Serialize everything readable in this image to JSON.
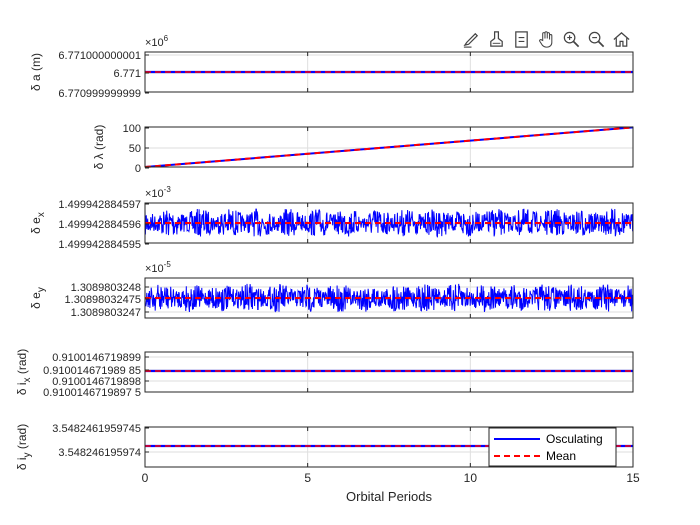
{
  "toolbar": {
    "icons": [
      "brush-edit-icon",
      "data-cursor-icon",
      "legend-icon",
      "pan-hand-icon",
      "zoom-in-icon",
      "zoom-out-icon",
      "home-icon"
    ]
  },
  "colors": {
    "oscillating": "#0000ff",
    "mean": "#ff0000",
    "axis": "#262626",
    "grid": "#dedede"
  },
  "chart_data": {
    "type": "line",
    "xlabel": "Orbital Periods",
    "xlim": [
      0,
      15
    ],
    "xticks": [
      "0",
      "5",
      "10",
      "15"
    ],
    "grid": true,
    "legend": {
      "entries": [
        "Osculating",
        "Mean"
      ],
      "placement": "bottom-right"
    },
    "subplots": [
      {
        "id": "da",
        "ylabel_main": "δ a (m)",
        "ylabel_sub": "",
        "exponent": "×10",
        "exponent_power": "6",
        "yticks": [
          "6.771000000001",
          "6.771",
          "6.770999999999"
        ],
        "pattern": "flat",
        "series": [
          {
            "name": "Osculating",
            "x": [
              0,
              15
            ],
            "y": [
              6.771,
              6.771
            ]
          },
          {
            "name": "Mean",
            "x": [
              0,
              15
            ],
            "y": [
              6.771,
              6.771
            ]
          }
        ]
      },
      {
        "id": "dlambda",
        "ylabel_main": "δ λ (rad)",
        "ylabel_sub": "",
        "exponent": "",
        "exponent_power": "",
        "yticks": [
          "100",
          "50",
          "0"
        ],
        "ylim": [
          0,
          100
        ],
        "pattern": "linear",
        "series": [
          {
            "name": "Osculating",
            "x": [
              0,
              15
            ],
            "y": [
              0,
              99
            ]
          },
          {
            "name": "Mean",
            "x": [
              0,
              15
            ],
            "y": [
              0,
              99
            ]
          }
        ]
      },
      {
        "id": "dex",
        "ylabel_main": "δ e",
        "ylabel_sub": "x",
        "exponent": "×10",
        "exponent_power": "-3",
        "yticks": [
          "1.499942884597",
          "1.499942884596",
          "1.499942884595"
        ],
        "pattern": "noise",
        "series": [
          {
            "name": "Osculating",
            "x": [
              0,
              15
            ],
            "y": [
              1.499942884596,
              1.499942884596
            ]
          },
          {
            "name": "Mean",
            "x": [
              0,
              15
            ],
            "y": [
              1.499942884596,
              1.499942884596
            ]
          }
        ]
      },
      {
        "id": "dey",
        "ylabel_main": "δ e",
        "ylabel_sub": "y",
        "exponent": "×10",
        "exponent_power": "-5",
        "yticks": [
          "1.3089803248",
          "1.30898032475",
          "1.3089803247"
        ],
        "pattern": "noise",
        "series": [
          {
            "name": "Osculating",
            "x": [
              0,
              15
            ],
            "y": [
              1.30898032475,
              1.30898032475
            ]
          },
          {
            "name": "Mean",
            "x": [
              0,
              15
            ],
            "y": [
              1.30898032475,
              1.30898032475
            ]
          }
        ]
      },
      {
        "id": "dix",
        "ylabel_main": "δ i",
        "ylabel_sub": "x",
        "ylabel_tail": " (rad)",
        "exponent": "",
        "exponent_power": "",
        "yticks": [
          "0.9100146719899",
          "0.910014671989 85",
          "0.9100146719898",
          "0.9100146719897 5"
        ],
        "pattern": "flat",
        "series": [
          {
            "name": "Osculating",
            "x": [
              0,
              15
            ],
            "y": [
              0.91001467198985,
              0.91001467198985
            ]
          },
          {
            "name": "Mean",
            "x": [
              0,
              15
            ],
            "y": [
              0.91001467198985,
              0.91001467198985
            ]
          }
        ]
      },
      {
        "id": "diy",
        "ylabel_main": "δ i",
        "ylabel_sub": "y",
        "ylabel_tail": " (rad)",
        "exponent": "",
        "exponent_power": "",
        "yticks": [
          "3.5482461959745",
          "3.548246195974"
        ],
        "pattern": "flat",
        "series": [
          {
            "name": "Osculating",
            "x": [
              0,
              15
            ],
            "y": [
              3.548246195974,
              3.548246195974
            ]
          },
          {
            "name": "Mean",
            "x": [
              0,
              15
            ],
            "y": [
              3.548246195974,
              3.548246195974
            ]
          }
        ]
      }
    ]
  }
}
